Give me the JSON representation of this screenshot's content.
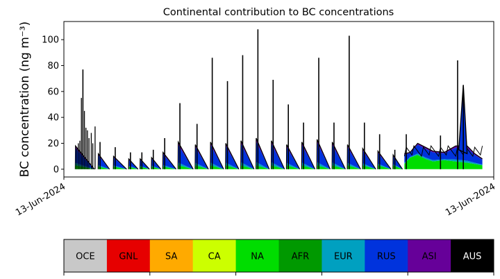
{
  "chart_data": {
    "type": "area",
    "title": "Continental contribution to BC concentrations",
    "ylabel": "BC concentration (ng m⁻³)",
    "xlabel": "",
    "ylim": [
      -6,
      114
    ],
    "yticks": [
      0,
      20,
      40,
      60,
      80,
      100
    ],
    "x_tick_labels": [
      "13-Jun-2024",
      "13-Jun-2024"
    ],
    "grid": false,
    "stack_order": [
      "OCE",
      "GNL",
      "SA",
      "CA",
      "NA",
      "AFR",
      "EUR",
      "RUS",
      "ASI",
      "AUS"
    ],
    "colors": {
      "OCE": "#c8c8c8",
      "GNL": "#e60000",
      "SA": "#ffaa00",
      "CA": "#ccff00",
      "NA": "#00dd00",
      "AFR": "#009900",
      "EUR": "#00a0c0",
      "RUS": "#0033dd",
      "ASI": "#660099",
      "AUS": "#000000"
    },
    "series_note": "x in hours from start of record, y in ng m-3",
    "pulses": [
      {
        "start": 0,
        "end": 5,
        "top": 18,
        "green": 3,
        "peak_x": 2,
        "peak": 77
      },
      {
        "start": 6,
        "end": 9,
        "top": 12,
        "green": 2,
        "peak_x": 6.5,
        "peak": 21
      },
      {
        "start": 10,
        "end": 13.5,
        "top": 10,
        "green": 2,
        "peak_x": 10.5,
        "peak": 17
      },
      {
        "start": 14,
        "end": 16.5,
        "top": 8,
        "green": 2,
        "peak_x": 14.5,
        "peak": 13
      },
      {
        "start": 17,
        "end": 19.5,
        "top": 8,
        "green": 2,
        "peak_x": 17.5,
        "peak": 13
      },
      {
        "start": 20,
        "end": 22.5,
        "top": 9,
        "green": 2,
        "peak_x": 20.5,
        "peak": 15
      },
      {
        "start": 23,
        "end": 26.5,
        "top": 13,
        "green": 2,
        "peak_x": 23.5,
        "peak": 24
      },
      {
        "start": 27,
        "end": 31,
        "top": 21,
        "green": 3,
        "peak_x": 27.5,
        "peak": 51
      },
      {
        "start": 31.5,
        "end": 35,
        "top": 19,
        "green": 3,
        "peak_x": 32,
        "peak": 35
      },
      {
        "start": 35.5,
        "end": 39,
        "top": 21,
        "green": 3,
        "peak_x": 36,
        "peak": 86
      },
      {
        "start": 39.5,
        "end": 43,
        "top": 20,
        "green": 3,
        "peak_x": 40,
        "peak": 68
      },
      {
        "start": 43.5,
        "end": 47,
        "top": 22,
        "green": 3,
        "peak_x": 44,
        "peak": 88
      },
      {
        "start": 47.5,
        "end": 51,
        "top": 24,
        "green": 3,
        "peak_x": 48,
        "peak": 108
      },
      {
        "start": 51.5,
        "end": 55,
        "top": 22,
        "green": 3,
        "peak_x": 52,
        "peak": 69
      },
      {
        "start": 55.5,
        "end": 59,
        "top": 19,
        "green": 3,
        "peak_x": 56,
        "peak": 50
      },
      {
        "start": 59.5,
        "end": 63,
        "top": 21,
        "green": 3,
        "peak_x": 60,
        "peak": 36
      },
      {
        "start": 63.5,
        "end": 67,
        "top": 23,
        "green": 3,
        "peak_x": 64,
        "peak": 86
      },
      {
        "start": 67.5,
        "end": 71,
        "top": 21,
        "green": 3,
        "peak_x": 68,
        "peak": 36
      },
      {
        "start": 71.5,
        "end": 75,
        "top": 19,
        "green": 3,
        "peak_x": 72,
        "peak": 103
      },
      {
        "start": 75.5,
        "end": 79,
        "top": 16,
        "green": 3,
        "peak_x": 76,
        "peak": 36
      },
      {
        "start": 79.5,
        "end": 83,
        "top": 14,
        "green": 3,
        "peak_x": 80,
        "peak": 27
      },
      {
        "start": 83.5,
        "end": 86,
        "top": 11,
        "green": 3,
        "peak_x": 84,
        "peak": 15
      }
    ],
    "final_segment": [
      {
        "x": 86.5,
        "top": 12,
        "green": 4
      },
      {
        "x": 88,
        "top": 13,
        "green": 9
      },
      {
        "x": 90,
        "top": 20,
        "green": 11
      },
      {
        "x": 92,
        "top": 17,
        "green": 8
      },
      {
        "x": 94,
        "top": 14,
        "green": 6
      },
      {
        "x": 97,
        "top": 13,
        "green": 7
      },
      {
        "x": 100,
        "top": 18,
        "green": 6
      },
      {
        "x": 103,
        "top": 18,
        "green": 5
      },
      {
        "x": 105,
        "top": 12,
        "green": 4
      },
      {
        "x": 107,
        "top": 8,
        "green": 3
      }
    ],
    "final_spikes": [
      {
        "x": 87,
        "peak": 27
      },
      {
        "x": 96,
        "peak": 26
      },
      {
        "x": 100.5,
        "peak": 84
      },
      {
        "x": 102,
        "peak": 65
      }
    ],
    "x_range": [
      -3,
      110
    ]
  },
  "colorbar": {
    "labels": [
      "OCE",
      "GNL",
      "SA",
      "CA",
      "NA",
      "AFR",
      "EUR",
      "RUS",
      "ASI",
      "AUS"
    ],
    "colors": [
      "#c8c8c8",
      "#e60000",
      "#ffaa00",
      "#ccff00",
      "#00dd00",
      "#009900",
      "#00a0c0",
      "#0033dd",
      "#660099",
      "#000000"
    ],
    "label_colors": [
      "#000000",
      "#000000",
      "#000000",
      "#000000",
      "#000000",
      "#000000",
      "#000000",
      "#000000",
      "#000000",
      "#ffffff"
    ]
  }
}
